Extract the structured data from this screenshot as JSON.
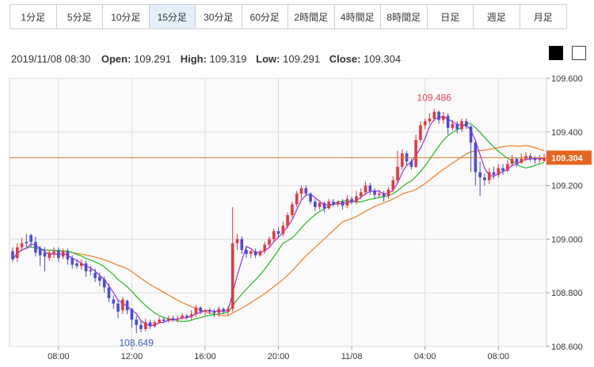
{
  "tabs": [
    {
      "label": "1分足",
      "active": false
    },
    {
      "label": "5分足",
      "active": false
    },
    {
      "label": "10分足",
      "active": false
    },
    {
      "label": "15分足",
      "active": true
    },
    {
      "label": "30分足",
      "active": false
    },
    {
      "label": "60分足",
      "active": false
    },
    {
      "label": "2時間足",
      "active": false
    },
    {
      "label": "4時間足",
      "active": false
    },
    {
      "label": "8時間足",
      "active": false
    },
    {
      "label": "日足",
      "active": false
    },
    {
      "label": "週足",
      "active": false
    },
    {
      "label": "月足",
      "active": false
    }
  ],
  "ohlc": {
    "datetime": "2019/11/08 08:30",
    "open_label": "Open:",
    "open": "109.291",
    "high_label": "High:",
    "high": "109.319",
    "low_label": "Low:",
    "low": "109.291",
    "close_label": "Close:",
    "close": "109.304"
  },
  "colors": {
    "up": "#e8363d",
    "down": "#4a4adf",
    "ma_short": "#9b30d9",
    "ma_mid": "#22bb22",
    "ma_long": "#f07e22",
    "price_line": "#d07a2a",
    "price_tag": "#e6661f",
    "grid": "#dddddd",
    "plot_bg": "#fafafa"
  },
  "chart_data": {
    "type": "candlestick",
    "ylim": [
      108.6,
      109.6
    ],
    "yticks": [
      "109.600",
      "109.400",
      "109.200",
      "109.000",
      "108.800",
      "108.600"
    ],
    "xticks": [
      "08:00",
      "12:00",
      "16:00",
      "20:00",
      "11/08",
      "04:00",
      "08:00"
    ],
    "current_price": "109.304",
    "annotations": {
      "high": "109.486",
      "low": "108.649"
    },
    "candles": [
      [
        108.955,
        108.925,
        108.97,
        108.915
      ],
      [
        108.93,
        108.97,
        108.985,
        108.915
      ],
      [
        108.97,
        108.985,
        109.005,
        108.955
      ],
      [
        108.99,
        108.985,
        109.02,
        108.97
      ],
      [
        109.015,
        108.99,
        109.02,
        108.97
      ],
      [
        108.99,
        108.95,
        109.01,
        108.935
      ],
      [
        108.965,
        108.94,
        108.975,
        108.9
      ],
      [
        108.95,
        108.935,
        108.97,
        108.88
      ],
      [
        108.93,
        108.95,
        108.96,
        108.92
      ],
      [
        108.945,
        108.955,
        108.97,
        108.93
      ],
      [
        108.96,
        108.93,
        108.97,
        108.915
      ],
      [
        108.935,
        108.955,
        108.965,
        108.925
      ],
      [
        108.955,
        108.925,
        108.965,
        108.905
      ],
      [
        108.93,
        108.905,
        108.94,
        108.89
      ],
      [
        108.91,
        108.9,
        108.925,
        108.89
      ],
      [
        108.9,
        108.91,
        108.925,
        108.885
      ],
      [
        108.91,
        108.88,
        108.92,
        108.86
      ],
      [
        108.885,
        108.88,
        108.9,
        108.865
      ],
      [
        108.875,
        108.855,
        108.89,
        108.84
      ],
      [
        108.86,
        108.845,
        108.875,
        108.825
      ],
      [
        108.85,
        108.82,
        108.86,
        108.8
      ],
      [
        108.82,
        108.78,
        108.835,
        108.765
      ],
      [
        108.775,
        108.76,
        108.79,
        108.74
      ],
      [
        108.76,
        108.73,
        108.775,
        108.705
      ],
      [
        108.735,
        108.775,
        108.785,
        108.72
      ],
      [
        108.77,
        108.735,
        108.775,
        108.72
      ],
      [
        108.74,
        108.7,
        108.745,
        108.67
      ],
      [
        108.7,
        108.68,
        108.715,
        108.649
      ],
      [
        108.68,
        108.665,
        108.7,
        108.652
      ],
      [
        108.665,
        108.69,
        108.705,
        108.655
      ],
      [
        108.69,
        108.675,
        108.7,
        108.665
      ],
      [
        108.675,
        108.69,
        108.7,
        108.67
      ],
      [
        108.69,
        108.7,
        108.71,
        108.685
      ],
      [
        108.7,
        108.695,
        108.71,
        108.688
      ],
      [
        108.695,
        108.705,
        108.715,
        108.69
      ],
      [
        108.705,
        108.7,
        108.715,
        108.692
      ],
      [
        108.7,
        108.705,
        108.715,
        108.69
      ],
      [
        108.705,
        108.715,
        108.725,
        108.7
      ],
      [
        108.715,
        108.71,
        108.72,
        108.7
      ],
      [
        108.71,
        108.72,
        108.735,
        108.7
      ],
      [
        108.72,
        108.745,
        108.755,
        108.71
      ],
      [
        108.745,
        108.73,
        108.75,
        108.72
      ],
      [
        108.73,
        108.735,
        108.74,
        108.715
      ],
      [
        108.735,
        108.73,
        108.745,
        108.72
      ],
      [
        108.73,
        108.725,
        108.74,
        108.71
      ],
      [
        108.725,
        108.74,
        108.75,
        108.71
      ],
      [
        108.74,
        108.73,
        108.745,
        108.72
      ],
      [
        108.73,
        108.74,
        108.75,
        108.715
      ],
      [
        108.74,
        108.985,
        109.12,
        108.73
      ],
      [
        108.985,
        109.0,
        109.02,
        108.96
      ],
      [
        109.0,
        108.96,
        109.01,
        108.945
      ],
      [
        108.96,
        108.945,
        108.975,
        108.93
      ],
      [
        108.945,
        108.955,
        108.96,
        108.93
      ],
      [
        108.955,
        108.94,
        108.965,
        108.93
      ],
      [
        108.94,
        108.955,
        108.96,
        108.935
      ],
      [
        108.955,
        108.98,
        108.99,
        108.945
      ],
      [
        108.98,
        109.0,
        109.01,
        108.97
      ],
      [
        109.0,
        109.03,
        109.04,
        108.99
      ],
      [
        109.03,
        109.02,
        109.045,
        109.005
      ],
      [
        109.02,
        109.05,
        109.065,
        109.01
      ],
      [
        109.05,
        109.09,
        109.1,
        109.04
      ],
      [
        109.09,
        109.13,
        109.14,
        109.08
      ],
      [
        109.13,
        109.17,
        109.18,
        109.12
      ],
      [
        109.17,
        109.19,
        109.2,
        109.15
      ],
      [
        109.19,
        109.17,
        109.2,
        109.16
      ],
      [
        109.17,
        109.14,
        109.175,
        109.13
      ],
      [
        109.14,
        109.12,
        109.15,
        109.105
      ],
      [
        109.12,
        109.135,
        109.145,
        109.11
      ],
      [
        109.135,
        109.115,
        109.14,
        109.1
      ],
      [
        109.115,
        109.14,
        109.15,
        109.11
      ],
      [
        109.14,
        109.13,
        109.15,
        109.12
      ],
      [
        109.13,
        109.14,
        109.145,
        109.12
      ],
      [
        109.14,
        109.125,
        109.15,
        109.11
      ],
      [
        109.125,
        109.15,
        109.165,
        109.115
      ],
      [
        109.15,
        109.14,
        109.16,
        109.13
      ],
      [
        109.14,
        109.16,
        109.18,
        109.13
      ],
      [
        109.16,
        109.175,
        109.19,
        109.15
      ],
      [
        109.175,
        109.2,
        109.215,
        109.165
      ],
      [
        109.2,
        109.18,
        109.21,
        109.165
      ],
      [
        109.18,
        109.165,
        109.19,
        109.15
      ],
      [
        109.165,
        109.17,
        109.185,
        109.155
      ],
      [
        109.17,
        109.16,
        109.18,
        109.14
      ],
      [
        109.16,
        109.185,
        109.195,
        109.15
      ],
      [
        109.185,
        109.22,
        109.235,
        109.175
      ],
      [
        109.22,
        109.27,
        109.33,
        109.21
      ],
      [
        109.27,
        109.32,
        109.335,
        109.26
      ],
      [
        109.32,
        109.29,
        109.33,
        109.275
      ],
      [
        109.29,
        109.27,
        109.3,
        109.26
      ],
      [
        109.27,
        109.37,
        109.39,
        109.265
      ],
      [
        109.37,
        109.425,
        109.44,
        109.36
      ],
      [
        109.425,
        109.44,
        109.45,
        109.41
      ],
      [
        109.44,
        109.45,
        109.47,
        109.43
      ],
      [
        109.45,
        109.475,
        109.486,
        109.44
      ],
      [
        109.475,
        109.445,
        109.48,
        109.43
      ],
      [
        109.445,
        109.46,
        109.475,
        109.43
      ],
      [
        109.46,
        109.415,
        109.47,
        109.39
      ],
      [
        109.415,
        109.43,
        109.445,
        109.405
      ],
      [
        109.43,
        109.41,
        109.44,
        109.395
      ],
      [
        109.41,
        109.44,
        109.45,
        109.4
      ],
      [
        109.44,
        109.42,
        109.45,
        109.41
      ],
      [
        109.42,
        109.36,
        109.425,
        109.25
      ],
      [
        109.36,
        109.25,
        109.37,
        109.2
      ],
      [
        109.25,
        109.23,
        109.29,
        109.16
      ],
      [
        109.23,
        109.22,
        109.245,
        109.2
      ],
      [
        109.22,
        109.25,
        109.265,
        109.205
      ],
      [
        109.25,
        109.24,
        109.27,
        109.225
      ],
      [
        109.24,
        109.265,
        109.28,
        109.23
      ],
      [
        109.265,
        109.255,
        109.28,
        109.24
      ],
      [
        109.255,
        109.28,
        109.295,
        109.25
      ],
      [
        109.28,
        109.3,
        109.315,
        109.27
      ],
      [
        109.3,
        109.285,
        109.305,
        109.27
      ],
      [
        109.285,
        109.3,
        109.32,
        109.28
      ],
      [
        109.3,
        109.31,
        109.325,
        109.29
      ],
      [
        109.31,
        109.3,
        109.32,
        109.29
      ],
      [
        109.3,
        109.295,
        109.31,
        109.28
      ],
      [
        109.295,
        109.3,
        109.315,
        109.285
      ],
      [
        109.291,
        109.304,
        109.319,
        109.291
      ]
    ]
  }
}
